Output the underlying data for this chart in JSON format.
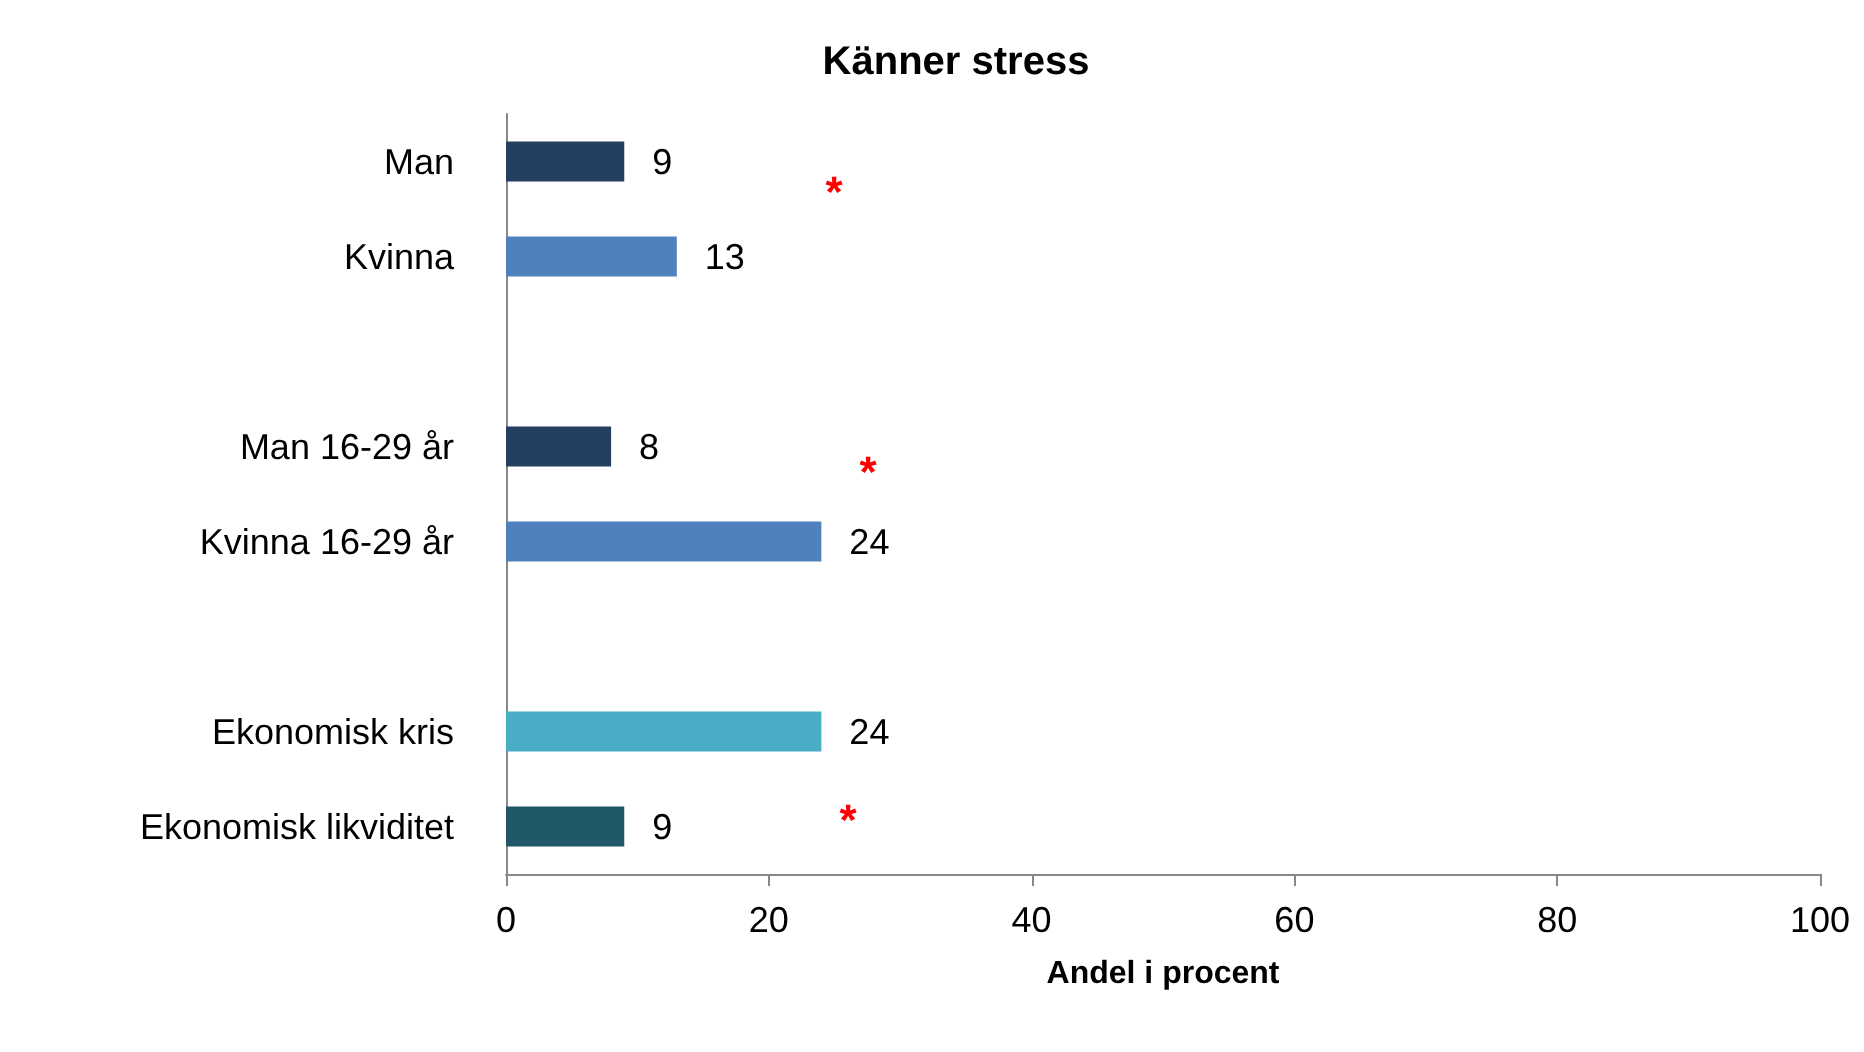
{
  "chart_data": {
    "type": "bar",
    "orientation": "horizontal",
    "title": "Känner stress",
    "xlabel": "Andel i procent",
    "categories": [
      "Man",
      "Kvinna",
      null,
      "Man 16-29 år",
      "Kvinna 16-29 år",
      null,
      "Ekonomisk kris",
      "Ekonomisk likviditet"
    ],
    "values": [
      9,
      13,
      null,
      8,
      24,
      null,
      24,
      9
    ],
    "colors": [
      "#243f60",
      "#4f81bd",
      "#4f81bd",
      "#243f60",
      "#4f81bd",
      "#4bacc6",
      "#4bacc6",
      "#215868"
    ],
    "xlim": [
      0,
      100
    ],
    "xticks": [
      0,
      20,
      40,
      60,
      80,
      100
    ],
    "data_labels": true,
    "grid": false,
    "annotations": [
      "*",
      "*",
      "*"
    ]
  }
}
